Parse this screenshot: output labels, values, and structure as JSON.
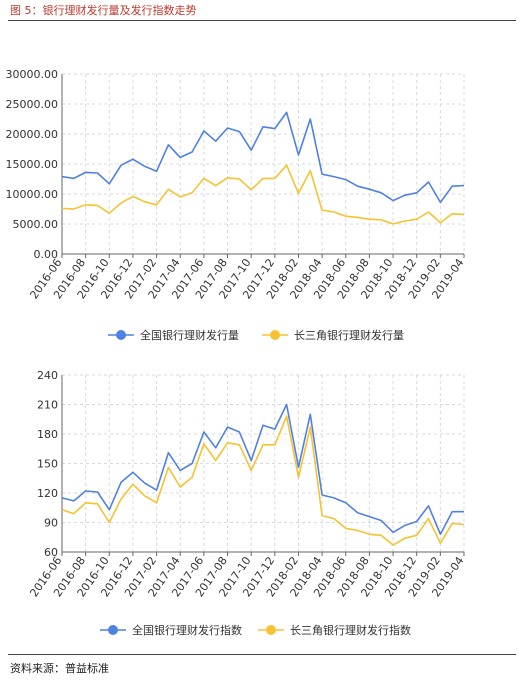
{
  "figure": {
    "title": "图 5：银行理财发行量及发行指数走势",
    "source": "资料来源：普益标准"
  },
  "colors": {
    "national": "#4f81e5",
    "yrd": "#f7c232",
    "grid": "#d9d9d9",
    "axis": "#666666"
  },
  "chart_data": [
    {
      "type": "line",
      "title": "",
      "ylim": [
        0,
        30000
      ],
      "yticks": [
        "0.00",
        "5000.00",
        "10000.00",
        "15000.00",
        "20000.00",
        "25000.00",
        "30000.00"
      ],
      "ytick_values": [
        0,
        5000,
        10000,
        15000,
        20000,
        25000,
        30000
      ],
      "x": [
        "2016-06",
        "2016-07",
        "2016-08",
        "2016-09",
        "2016-10",
        "2016-11",
        "2016-12",
        "2017-01",
        "2017-02",
        "2017-03",
        "2017-04",
        "2017-05",
        "2017-06",
        "2017-07",
        "2017-08",
        "2017-09",
        "2017-10",
        "2017-11",
        "2017-12",
        "2018-01",
        "2018-02",
        "2018-03",
        "2018-04",
        "2018-05",
        "2018-06",
        "2018-07",
        "2018-08",
        "2018-09",
        "2018-10",
        "2018-11",
        "2018-12",
        "2019-01",
        "2019-02",
        "2019-03",
        "2019-04"
      ],
      "xtick_labels": [
        "2016-06",
        "2016-08",
        "2016-10",
        "2016-12",
        "2017-02",
        "2017-04",
        "2017-06",
        "2017-08",
        "2017-10",
        "2017-12",
        "2018-02",
        "2018-04",
        "2018-06",
        "2018-08",
        "2018-10",
        "2018-12",
        "2019-02",
        "2019-04"
      ],
      "series": [
        {
          "name": "全国银行理财发行量",
          "color": "#4f81e5",
          "values": [
            12900,
            12600,
            13600,
            13500,
            11700,
            14800,
            15800,
            14600,
            13800,
            18200,
            16100,
            17000,
            20500,
            18800,
            21000,
            20400,
            17300,
            21200,
            20900,
            23600,
            16500,
            22500,
            13300,
            12900,
            12400,
            11300,
            10800,
            10200,
            8900,
            9800,
            10200,
            12000,
            8600,
            11300,
            11400
          ]
        },
        {
          "name": "长三角银行理财发行量",
          "color": "#f7c232",
          "values": [
            7600,
            7500,
            8200,
            8100,
            6800,
            8500,
            9600,
            8700,
            8200,
            10800,
            9500,
            10200,
            12600,
            11400,
            12700,
            12500,
            10700,
            12600,
            12600,
            14800,
            10100,
            13900,
            7300,
            7000,
            6300,
            6100,
            5800,
            5700,
            5000,
            5500,
            5800,
            7000,
            5200,
            6700,
            6600
          ]
        }
      ],
      "legend": "bottom"
    },
    {
      "type": "line",
      "title": "",
      "ylim": [
        60,
        240
      ],
      "yticks": [
        "60",
        "90",
        "120",
        "150",
        "180",
        "210",
        "240"
      ],
      "ytick_values": [
        60,
        90,
        120,
        150,
        180,
        210,
        240
      ],
      "x": [
        "2016-06",
        "2016-07",
        "2016-08",
        "2016-09",
        "2016-10",
        "2016-11",
        "2016-12",
        "2017-01",
        "2017-02",
        "2017-03",
        "2017-04",
        "2017-05",
        "2017-06",
        "2017-07",
        "2017-08",
        "2017-09",
        "2017-10",
        "2017-11",
        "2017-12",
        "2018-01",
        "2018-02",
        "2018-03",
        "2018-04",
        "2018-05",
        "2018-06",
        "2018-07",
        "2018-08",
        "2018-09",
        "2018-10",
        "2018-11",
        "2018-12",
        "2019-01",
        "2019-02",
        "2019-03",
        "2019-04"
      ],
      "xtick_labels": [
        "2016-06",
        "2016-08",
        "2016-10",
        "2016-12",
        "2017-02",
        "2017-04",
        "2017-06",
        "2017-08",
        "2017-10",
        "2017-12",
        "2018-02",
        "2018-04",
        "2018-06",
        "2018-08",
        "2018-10",
        "2018-12",
        "2019-02",
        "2019-04"
      ],
      "series": [
        {
          "name": "全国银行理财发行指数",
          "color": "#4f81e5",
          "values": [
            115,
            112,
            122,
            121,
            103,
            131,
            141,
            130,
            123,
            161,
            143,
            150,
            182,
            166,
            187,
            182,
            153,
            189,
            185,
            210,
            146,
            200,
            118,
            115,
            110,
            100,
            96,
            92,
            80,
            87,
            91,
            107,
            78,
            101,
            101
          ]
        },
        {
          "name": "长三角银行理财发行指数",
          "color": "#f7c232",
          "values": [
            103,
            99,
            110,
            109,
            90,
            114,
            129,
            117,
            110,
            146,
            126,
            136,
            170,
            153,
            171,
            169,
            143,
            169,
            169,
            198,
            136,
            187,
            97,
            94,
            84,
            82,
            78,
            77,
            67,
            74,
            77,
            94,
            69,
            89,
            88
          ]
        }
      ],
      "legend": "bottom"
    }
  ]
}
